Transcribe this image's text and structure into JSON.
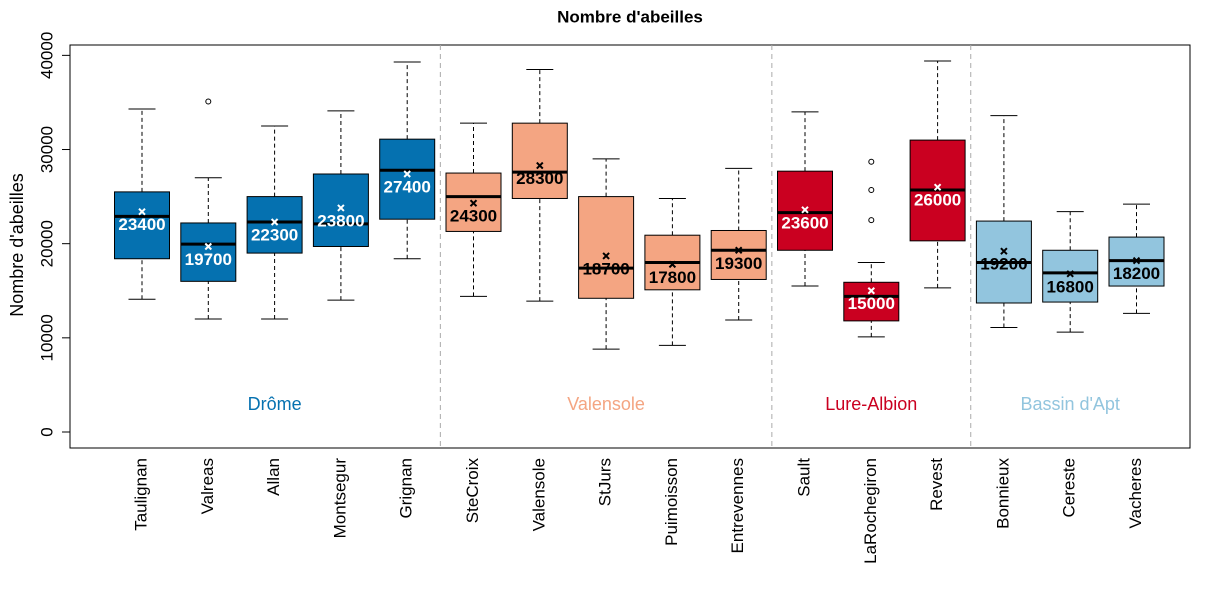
{
  "chart_data": {
    "type": "box",
    "title": "Nombre d'abeilles",
    "y_label": "Nombre d'abeilles",
    "ylim": [
      -1700,
      41100
    ],
    "yticks": [
      0,
      10000,
      20000,
      30000,
      40000
    ],
    "groups": [
      {
        "name": "Drôme",
        "color": "#0571b0",
        "text_color": "#ffffff",
        "categories": [
          "Taulignan",
          "Valreas",
          "Allan",
          "Montsegur",
          "Grignan"
        ],
        "whisker_low": [
          14100,
          12000,
          12000,
          14000,
          18400
        ],
        "q1": [
          18400,
          16000,
          19000,
          19700,
          22600
        ],
        "median": [
          22900,
          19950,
          22300,
          22100,
          27800
        ],
        "q3": [
          25500,
          22200,
          25000,
          27400,
          31100
        ],
        "whisker_high": [
          34300,
          27000,
          32500,
          34100,
          39300
        ],
        "mean": [
          23400,
          19700,
          22300,
          23800,
          27400
        ],
        "outliers": [
          [],
          [
            35100
          ],
          [],
          [],
          []
        ]
      },
      {
        "name": "Valensole",
        "color": "#f4a582",
        "text_color": "#000000",
        "categories": [
          "SteCroix",
          "Valensole",
          "StJurs",
          "Puimoisson",
          "Entrevennes"
        ],
        "whisker_low": [
          14400,
          13900,
          8800,
          9200,
          11900
        ],
        "q1": [
          21300,
          24800,
          14200,
          15100,
          16200
        ],
        "median": [
          25000,
          27600,
          17400,
          18000,
          19300
        ],
        "q3": [
          27500,
          32800,
          25000,
          20900,
          21400
        ],
        "whisker_high": [
          32800,
          38500,
          29000,
          24800,
          28000
        ],
        "mean": [
          24300,
          28300,
          18700,
          17800,
          19300
        ],
        "outliers": [
          [],
          [],
          [],
          [],
          []
        ]
      },
      {
        "name": "Lure-Albion",
        "color": "#ca0020",
        "text_color": "#ffffff",
        "categories": [
          "Sault",
          "LaRochegiron",
          "Revest"
        ],
        "whisker_low": [
          15500,
          10100,
          15300
        ],
        "q1": [
          19300,
          11800,
          20300
        ],
        "median": [
          23300,
          14400,
          25700
        ],
        "q3": [
          27700,
          15900,
          31000
        ],
        "whisker_high": [
          34000,
          18000,
          39400
        ],
        "mean": [
          23600,
          15000,
          26000
        ],
        "outliers": [
          [],
          [
            28700,
            25700,
            22500
          ],
          []
        ]
      },
      {
        "name": "Bassin d'Apt",
        "color": "#92c5de",
        "text_color": "#000000",
        "categories": [
          "Bonnieux",
          "Cereste",
          "Vacheres"
        ],
        "whisker_low": [
          11100,
          10600,
          12600
        ],
        "q1": [
          13700,
          13800,
          15500
        ],
        "median": [
          18000,
          16900,
          18200
        ],
        "q3": [
          22400,
          19300,
          20700
        ],
        "whisker_high": [
          33600,
          23400,
          24200
        ],
        "mean": [
          19200,
          16800,
          18200
        ],
        "outliers": [
          [],
          [],
          []
        ]
      }
    ]
  }
}
